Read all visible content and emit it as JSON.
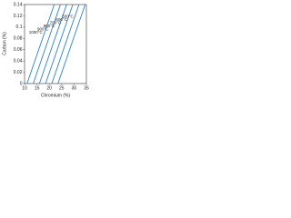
{
  "chart_data": {
    "type": "line",
    "xlabel": "Chromium (%)",
    "ylabel": "Carbon (%)",
    "xlim": [
      10,
      35
    ],
    "xticks": [
      10,
      15,
      20,
      25,
      30,
      35
    ],
    "ylim": [
      0,
      0.14
    ],
    "yticks": [
      0,
      0.02,
      0.04,
      0.06,
      0.08,
      0.1,
      0.12,
      0.14
    ],
    "series": [
      {
        "name": "1000°C",
        "color": "#2f7fc8",
        "x": [
          11,
          22
        ],
        "values": [
          0,
          0.14
        ]
      },
      {
        "name": "900°C",
        "color": "#2f7fc8",
        "x": [
          13.5,
          24.5
        ],
        "values": [
          0,
          0.14
        ]
      },
      {
        "name": "800°C",
        "color": "#2f7fc8",
        "x": [
          16,
          27
        ],
        "values": [
          0,
          0.14
        ]
      },
      {
        "name": "700°C",
        "color": "#2f7fc8",
        "x": [
          18.5,
          29.5
        ],
        "values": [
          0,
          0.14
        ]
      },
      {
        "name": "600°C",
        "color": "#2f7fc8",
        "x": [
          21,
          32
        ],
        "values": [
          0,
          0.14
        ]
      },
      {
        "name": "500°C",
        "color": "#2f7fc8",
        "x": [
          23.5,
          34.5
        ],
        "values": [
          0,
          0.14
        ]
      }
    ]
  }
}
